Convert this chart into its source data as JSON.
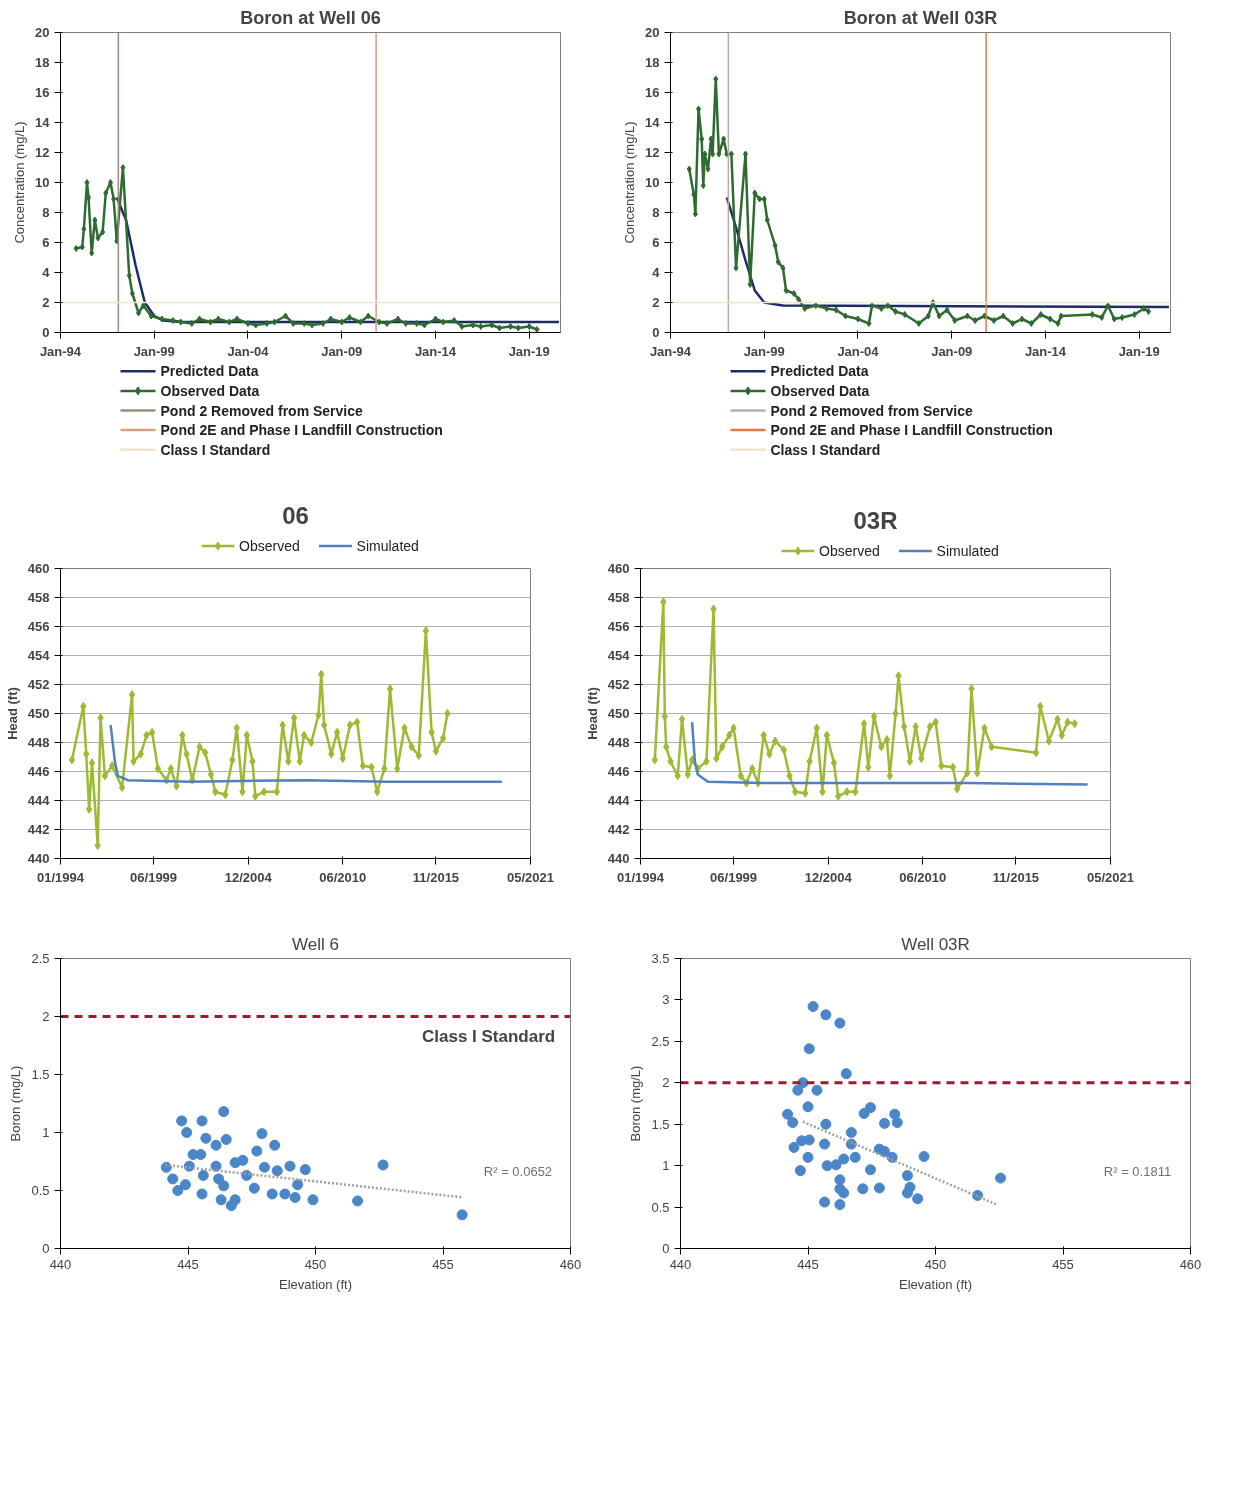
{
  "chart_data": [
    {
      "type": "line",
      "title": "Boron at Well 06",
      "ylabel": "Concentration (mg/L)",
      "xlim": [
        "1994-01",
        "2020-09"
      ],
      "ylim": [
        0,
        20
      ],
      "yticks": [
        0,
        2,
        4,
        6,
        8,
        10,
        12,
        14,
        16,
        18,
        20
      ],
      "xticks": [
        {
          "value": "1994-01",
          "label": "Jan-94"
        },
        {
          "value": "1999-01",
          "label": "Jan-99"
        },
        {
          "value": "2004-01",
          "label": "Jan-04"
        },
        {
          "value": "2009-01",
          "label": "Jan-09"
        },
        {
          "value": "2014-01",
          "label": "Jan-14"
        },
        {
          "value": "2019-01",
          "label": "Jan-19"
        }
      ],
      "grid": false,
      "legend": "bottom",
      "series": [
        {
          "name": "Predicted Data",
          "color": "#1f2a6b",
          "marker": "none",
          "x": [
            "1997-01",
            "1997-07",
            "1998-01",
            "1998-07",
            "1999-01",
            "1999-07",
            "2000-06",
            "2020-08"
          ],
          "values": [
            9.0,
            7.5,
            4.5,
            2.0,
            1.1,
            0.8,
            0.7,
            0.7
          ]
        },
        {
          "name": "Observed Data",
          "color": "#2e6b30",
          "marker": "diamond",
          "x": [
            "1994-11",
            "1995-03",
            "1995-04",
            "1995-06",
            "1995-07",
            "1995-09",
            "1995-11",
            "1996-01",
            "1996-04",
            "1996-06",
            "1996-09",
            "1996-11",
            "1997-01",
            "1997-05",
            "1997-09",
            "1997-11",
            "1998-03",
            "1998-06",
            "1998-11",
            "1999-06",
            "2000-01",
            "2000-06",
            "2001-01",
            "2001-06",
            "2002-01",
            "2002-06",
            "2003-01",
            "2003-06",
            "2004-01",
            "2004-06",
            "2005-01",
            "2005-06",
            "2006-01",
            "2006-06",
            "2007-01",
            "2007-06",
            "2008-01",
            "2008-06",
            "2009-01",
            "2009-06",
            "2010-01",
            "2010-06",
            "2011-01",
            "2011-06",
            "2012-01",
            "2012-06",
            "2013-01",
            "2013-06",
            "2014-01",
            "2014-06",
            "2015-01",
            "2015-06",
            "2016-01",
            "2016-06",
            "2017-01",
            "2017-06",
            "2018-01",
            "2018-06",
            "2019-01",
            "2019-06"
          ],
          "values": [
            5.6,
            5.7,
            6.9,
            10.0,
            9.0,
            5.3,
            7.5,
            6.3,
            6.7,
            9.3,
            10.0,
            8.9,
            6.1,
            11.0,
            3.8,
            2.6,
            1.3,
            1.8,
            1.1,
            0.9,
            0.8,
            0.7,
            0.6,
            0.9,
            0.7,
            0.9,
            0.7,
            0.9,
            0.6,
            0.5,
            0.6,
            0.7,
            1.1,
            0.6,
            0.6,
            0.5,
            0.6,
            0.9,
            0.7,
            1.0,
            0.7,
            1.1,
            0.7,
            0.6,
            0.9,
            0.6,
            0.6,
            0.5,
            0.9,
            0.7,
            0.8,
            0.4,
            0.5,
            0.4,
            0.5,
            0.3,
            0.4,
            0.3,
            0.4,
            0.2
          ]
        }
      ],
      "ref_lines": [
        {
          "axis": "x",
          "value": "1997-02",
          "label": "Pond 2 Removed from Service",
          "color": "#9c8a7a"
        },
        {
          "axis": "x",
          "value": "2010-11",
          "label": "Pond 2E and Phase I Landfill Construction",
          "color": "#d4a080"
        },
        {
          "axis": "y",
          "value": 2,
          "label": "Class I Standard",
          "color": "#f3e3cc"
        }
      ]
    },
    {
      "type": "line",
      "title": "Boron at Well 03R",
      "ylabel": "Concentration (mg/L)",
      "xlim": [
        "1994-01",
        "2020-09"
      ],
      "ylim": [
        0,
        20
      ],
      "yticks": [
        0,
        2,
        4,
        6,
        8,
        10,
        12,
        14,
        16,
        18,
        20
      ],
      "xticks": [
        {
          "value": "1994-01",
          "label": "Jan-94"
        },
        {
          "value": "1999-01",
          "label": "Jan-99"
        },
        {
          "value": "2004-01",
          "label": "Jan-04"
        },
        {
          "value": "2009-01",
          "label": "Jan-09"
        },
        {
          "value": "2014-01",
          "label": "Jan-14"
        },
        {
          "value": "2019-01",
          "label": "Jan-19"
        }
      ],
      "grid": false,
      "legend": "bottom",
      "series": [
        {
          "name": "Predicted Data",
          "color": "#1f2a6b",
          "marker": "none",
          "x": [
            "1997-01",
            "1997-07",
            "1998-01",
            "1998-07",
            "1999-01",
            "2000-01",
            "2020-08"
          ],
          "values": [
            9.0,
            7.0,
            4.8,
            2.8,
            2.0,
            1.8,
            1.7
          ]
        },
        {
          "name": "Observed Data",
          "color": "#2e6b30",
          "marker": "diamond",
          "x": [
            "1995-01",
            "1995-04",
            "1995-05",
            "1995-07",
            "1995-09",
            "1995-10",
            "1995-11",
            "1996-01",
            "1996-03",
            "1996-04",
            "1996-06",
            "1996-08",
            "1996-11",
            "1997-01",
            "1997-04",
            "1997-07",
            "1998-01",
            "1998-04",
            "1998-07",
            "1998-10",
            "1999-01",
            "1999-03",
            "1999-08",
            "1999-10",
            "2000-01",
            "2000-03",
            "2000-08",
            "2000-11",
            "2001-03",
            "2001-10",
            "2002-05",
            "2002-11",
            "2003-05",
            "2004-01",
            "2004-08",
            "2004-10",
            "2005-04",
            "2005-08",
            "2006-01",
            "2006-07",
            "2007-04",
            "2007-10",
            "2008-01",
            "2008-05",
            "2008-10",
            "2009-03",
            "2009-11",
            "2010-04",
            "2010-10",
            "2011-04",
            "2011-10",
            "2012-04",
            "2012-10",
            "2013-04",
            "2013-10",
            "2014-04",
            "2014-09",
            "2014-11",
            "2016-07",
            "2017-01",
            "2017-05",
            "2017-09",
            "2018-02",
            "2018-10",
            "2019-04",
            "2019-07"
          ],
          "values": [
            10.9,
            9.2,
            7.9,
            14.9,
            12.9,
            9.8,
            11.9,
            10.9,
            12.9,
            11.9,
            16.9,
            11.9,
            12.9,
            11.9,
            11.9,
            4.3,
            11.9,
            3.2,
            9.3,
            8.9,
            8.9,
            7.5,
            5.8,
            4.7,
            4.3,
            2.8,
            2.6,
            2.2,
            1.6,
            1.8,
            1.6,
            1.5,
            1.1,
            0.9,
            0.6,
            1.8,
            1.6,
            1.8,
            1.4,
            1.2,
            0.6,
            1.1,
            2.0,
            1.1,
            1.5,
            0.8,
            1.1,
            0.8,
            1.1,
            0.8,
            1.1,
            0.6,
            0.9,
            0.6,
            1.2,
            0.9,
            0.6,
            1.1,
            1.2,
            1.0,
            1.8,
            0.9,
            1.0,
            1.2,
            1.6,
            1.4
          ]
        }
      ],
      "ref_lines": [
        {
          "axis": "x",
          "value": "1997-02",
          "label": "Pond 2 Removed from Service",
          "color": "#b8aaa8"
        },
        {
          "axis": "x",
          "value": "2010-11",
          "label": "Pond 2E and Phase I Landfill Construction",
          "color": "#e07a4a"
        },
        {
          "axis": "y",
          "value": 2,
          "label": "Class I Standard",
          "color": "#f3e3cc"
        }
      ]
    },
    {
      "type": "line",
      "title": "06",
      "ylabel": "Head (ft)",
      "xlim": [
        "1994-01",
        "2021-05"
      ],
      "ylim": [
        440,
        460
      ],
      "yticks": [
        440,
        442,
        444,
        446,
        448,
        450,
        452,
        454,
        456,
        458,
        460
      ],
      "xticks": [
        {
          "value": "1994-01",
          "label": "01/1994"
        },
        {
          "value": "1999-06",
          "label": "06/1999"
        },
        {
          "value": "2004-12",
          "label": "12/2004"
        },
        {
          "value": "2010-06",
          "label": "06/2010"
        },
        {
          "value": "2015-11",
          "label": "11/2015"
        },
        {
          "value": "2021-05",
          "label": "05/2021"
        }
      ],
      "grid": "y",
      "legend": "top",
      "series": [
        {
          "name": "Observed",
          "color": "#9bbb33",
          "marker": "diamond",
          "x": [
            "1994-09",
            "1995-05",
            "1995-07",
            "1995-09",
            "1995-11",
            "1996-03",
            "1996-05",
            "1996-08",
            "1997-01",
            "1997-08",
            "1998-03",
            "1998-04",
            "1998-09",
            "1999-01",
            "1999-05",
            "1999-09",
            "2000-03",
            "2000-06",
            "2000-10",
            "2001-02",
            "2001-05",
            "2001-09",
            "2002-02",
            "2002-06",
            "2002-10",
            "2003-01",
            "2003-08",
            "2004-01",
            "2004-04",
            "2004-08",
            "2004-11",
            "2005-03",
            "2005-05",
            "2005-11",
            "2006-08",
            "2006-12",
            "2007-04",
            "2007-08",
            "2007-12",
            "2008-03",
            "2008-08",
            "2009-01",
            "2009-03",
            "2009-05",
            "2009-10",
            "2010-02",
            "2010-06",
            "2010-11",
            "2011-04",
            "2011-08",
            "2012-02",
            "2012-06",
            "2012-11",
            "2013-03",
            "2013-08",
            "2014-01",
            "2014-06",
            "2014-11",
            "2015-04",
            "2015-08",
            "2015-11",
            "2016-04",
            "2016-07"
          ],
          "values": [
            446.8,
            450.5,
            447.2,
            443.4,
            446.6,
            440.9,
            449.7,
            445.7,
            446.4,
            444.9,
            451.3,
            446.7,
            447.2,
            448.5,
            448.7,
            446.2,
            445.4,
            446.2,
            445.0,
            448.5,
            447.2,
            445.4,
            447.7,
            447.3,
            445.8,
            444.6,
            444.4,
            446.8,
            449.0,
            444.6,
            448.5,
            446.7,
            444.3,
            444.6,
            444.6,
            449.2,
            446.7,
            449.7,
            446.7,
            448.5,
            448.0,
            449.9,
            452.7,
            449.2,
            447.2,
            448.7,
            446.9,
            449.2,
            449.4,
            446.4,
            446.3,
            444.6,
            446.2,
            451.7,
            446.2,
            449.0,
            447.7,
            447.1,
            455.7,
            448.7,
            447.4,
            448.3,
            450.0
          ]
        },
        {
          "name": "Simulated",
          "color": "#4f81bd",
          "marker": "none",
          "x": [
            "1996-12",
            "1997-03",
            "1997-05",
            "1997-12",
            "2001-08",
            "2008-05",
            "2013-01",
            "2019-09"
          ],
          "values": [
            449.2,
            446.7,
            445.7,
            445.4,
            445.3,
            445.4,
            445.3,
            445.3
          ]
        }
      ]
    },
    {
      "type": "line",
      "title": "03R",
      "ylabel": "Head (ft)",
      "xlim": [
        "1994-01",
        "2021-05"
      ],
      "ylim": [
        440,
        460
      ],
      "yticks": [
        440,
        442,
        444,
        446,
        448,
        450,
        452,
        454,
        456,
        458,
        460
      ],
      "xticks": [
        {
          "value": "1994-01",
          "label": "01/1994"
        },
        {
          "value": "1999-06",
          "label": "06/1999"
        },
        {
          "value": "2004-12",
          "label": "12/2004"
        },
        {
          "value": "2010-06",
          "label": "06/2010"
        },
        {
          "value": "2015-11",
          "label": "11/2015"
        },
        {
          "value": "2021-05",
          "label": "05/2021"
        }
      ],
      "grid": "y",
      "legend": "top",
      "series": [
        {
          "name": "Observed",
          "color": "#9bbb33",
          "marker": "diamond",
          "x": [
            "1994-11",
            "1995-05",
            "1995-06",
            "1995-07",
            "1995-10",
            "1996-03",
            "1996-06",
            "1996-10",
            "1997-01",
            "1997-05",
            "1997-11",
            "1998-04",
            "1998-06",
            "1998-10",
            "1999-03",
            "1999-06",
            "1999-11",
            "2000-03",
            "2000-07",
            "2000-11",
            "2001-03",
            "2001-07",
            "2001-11",
            "2002-05",
            "2002-09",
            "2003-01",
            "2003-08",
            "2003-11",
            "2004-04",
            "2004-08",
            "2004-11",
            "2005-04",
            "2005-07",
            "2006-01",
            "2006-07",
            "2007-01",
            "2007-04",
            "2007-08",
            "2008-01",
            "2008-05",
            "2008-07",
            "2008-11",
            "2009-01",
            "2009-05",
            "2009-09",
            "2010-01",
            "2010-05",
            "2010-11",
            "2011-03",
            "2011-07",
            "2012-03",
            "2012-06",
            "2013-01",
            "2013-04",
            "2013-08",
            "2014-01",
            "2014-06",
            "2017-01",
            "2017-04",
            "2017-10",
            "2018-04",
            "2018-07",
            "2018-11",
            "2019-04"
          ],
          "values": [
            446.8,
            457.7,
            449.8,
            447.7,
            446.7,
            445.7,
            449.6,
            445.8,
            446.8,
            446.2,
            446.7,
            457.2,
            446.9,
            447.7,
            448.5,
            449.0,
            445.7,
            445.2,
            446.2,
            445.2,
            448.5,
            447.2,
            448.1,
            447.5,
            445.7,
            444.6,
            444.5,
            446.7,
            449.0,
            444.6,
            448.5,
            446.6,
            444.3,
            444.6,
            444.6,
            449.3,
            446.3,
            449.8,
            447.7,
            448.2,
            445.7,
            450.0,
            452.6,
            449.1,
            446.7,
            449.1,
            446.9,
            449.1,
            449.4,
            446.4,
            446.3,
            444.8,
            445.9,
            451.7,
            445.9,
            449.0,
            447.7,
            447.3,
            450.5,
            448.1,
            449.6,
            448.5,
            449.4,
            449.3
          ]
        },
        {
          "name": "Simulated",
          "color": "#4f81bd",
          "marker": "none",
          "x": [
            "1997-01",
            "1997-03",
            "1997-05",
            "1997-12",
            "2001-07",
            "2013-01",
            "2020-01"
          ],
          "values": [
            449.4,
            446.7,
            445.8,
            445.3,
            445.2,
            445.2,
            445.1
          ]
        }
      ]
    },
    {
      "type": "scatter",
      "title": "Well 6",
      "xlabel": "Elevation (ft)",
      "ylabel": "Boron (mg/L)",
      "xlim": [
        440,
        460
      ],
      "ylim": [
        0,
        2.5
      ],
      "xticks": [
        440,
        445,
        450,
        455,
        460
      ],
      "yticks": [
        0,
        0.5,
        1,
        1.5,
        2,
        2.5
      ],
      "grid": false,
      "marker": "circle",
      "series": [
        {
          "color": "#4a86c8",
          "x": [
            444.75,
            444.95,
            445.55,
            446.4,
            445.7,
            446.1,
            446.5,
            447.9,
            448.4,
            447.7,
            444.15,
            444.4,
            444.6,
            444.9,
            445.05,
            445.2,
            445.5,
            445.6,
            445.55,
            446.1,
            446.2,
            446.4,
            446.3,
            446.7,
            446.85,
            446.85,
            447.15,
            447.3,
            447.6,
            448.0,
            448.3,
            448.5,
            448.8,
            449.0,
            449.3,
            449.2,
            449.6,
            449.9,
            451.65,
            452.65,
            455.75
          ],
          "values": [
            1.1,
            1.0,
            1.1,
            1.18,
            0.95,
            0.89,
            0.94,
            0.99,
            0.89,
            0.84,
            0.7,
            0.6,
            0.5,
            0.55,
            0.71,
            0.81,
            0.81,
            0.63,
            0.47,
            0.71,
            0.6,
            0.54,
            0.42,
            0.37,
            0.42,
            0.74,
            0.76,
            0.63,
            0.52,
            0.7,
            0.47,
            0.67,
            0.47,
            0.71,
            0.55,
            0.44,
            0.68,
            0.42,
            0.41,
            0.72,
            0.29
          ]
        },
        {
          "type": "line",
          "color": "#a0a0a0",
          "line_style": "dotted",
          "marker": "none",
          "x": [
            444.1,
            455.8
          ],
          "values": [
            0.72,
            0.44
          ]
        }
      ],
      "ref_lines": [
        {
          "axis": "y",
          "value": 2,
          "label": "Class I Standard",
          "color": "#9e1b2a",
          "line_style": "dashed"
        }
      ],
      "annotations": [
        "R² = 0.0652"
      ]
    },
    {
      "type": "scatter",
      "title": "Well 03R",
      "xlabel": "Elevation (ft)",
      "ylabel": "Boron (mg/L)",
      "xlim": [
        440,
        460
      ],
      "ylim": [
        0,
        3.5
      ],
      "xticks": [
        440,
        445,
        450,
        455,
        460
      ],
      "yticks": [
        0,
        0.5,
        1,
        1.5,
        2,
        2.5,
        3,
        3.5
      ],
      "grid": false,
      "marker": "circle",
      "series": [
        {
          "color": "#4a86c8",
          "x": [
            445.2,
            445.7,
            446.25,
            445.05,
            446.5,
            444.8,
            444.6,
            445.35,
            445.0,
            444.2,
            444.4,
            445.7,
            447.45,
            447.2,
            448.4,
            448.0,
            448.5,
            446.7,
            444.45,
            444.75,
            445.05,
            445.65,
            446.7,
            447.8,
            448.0,
            448.3,
            449.55,
            445.0,
            444.7,
            445.75,
            446.1,
            446.4,
            446.85,
            447.45,
            446.25,
            446.25,
            446.4,
            445.65,
            446.25,
            447.15,
            447.8,
            448.9,
            449.0,
            448.9,
            449.3,
            451.65,
            452.55
          ],
          "values": [
            2.92,
            2.82,
            2.72,
            2.41,
            2.11,
            2.0,
            1.91,
            1.91,
            1.71,
            1.62,
            1.52,
            1.5,
            1.7,
            1.63,
            1.62,
            1.51,
            1.52,
            1.4,
            1.22,
            1.3,
            1.31,
            1.26,
            1.26,
            1.2,
            1.17,
            1.1,
            1.11,
            1.1,
            0.94,
            1.0,
            1.01,
            1.08,
            1.1,
            0.95,
            0.83,
            0.72,
            0.67,
            0.56,
            0.53,
            0.72,
            0.73,
            0.88,
            0.74,
            0.67,
            0.6,
            0.64,
            0.85
          ]
        },
        {
          "type": "line",
          "color": "#a0a0a0",
          "line_style": "dotted",
          "marker": "none",
          "x": [
            444.8,
            452.4
          ],
          "values": [
            1.53,
            0.53
          ]
        }
      ],
      "ref_lines": [
        {
          "axis": "y",
          "value": 2,
          "color": "#9e1b2a",
          "line_style": "dashed"
        }
      ],
      "annotations": [
        "R² = 0.1811"
      ]
    }
  ]
}
